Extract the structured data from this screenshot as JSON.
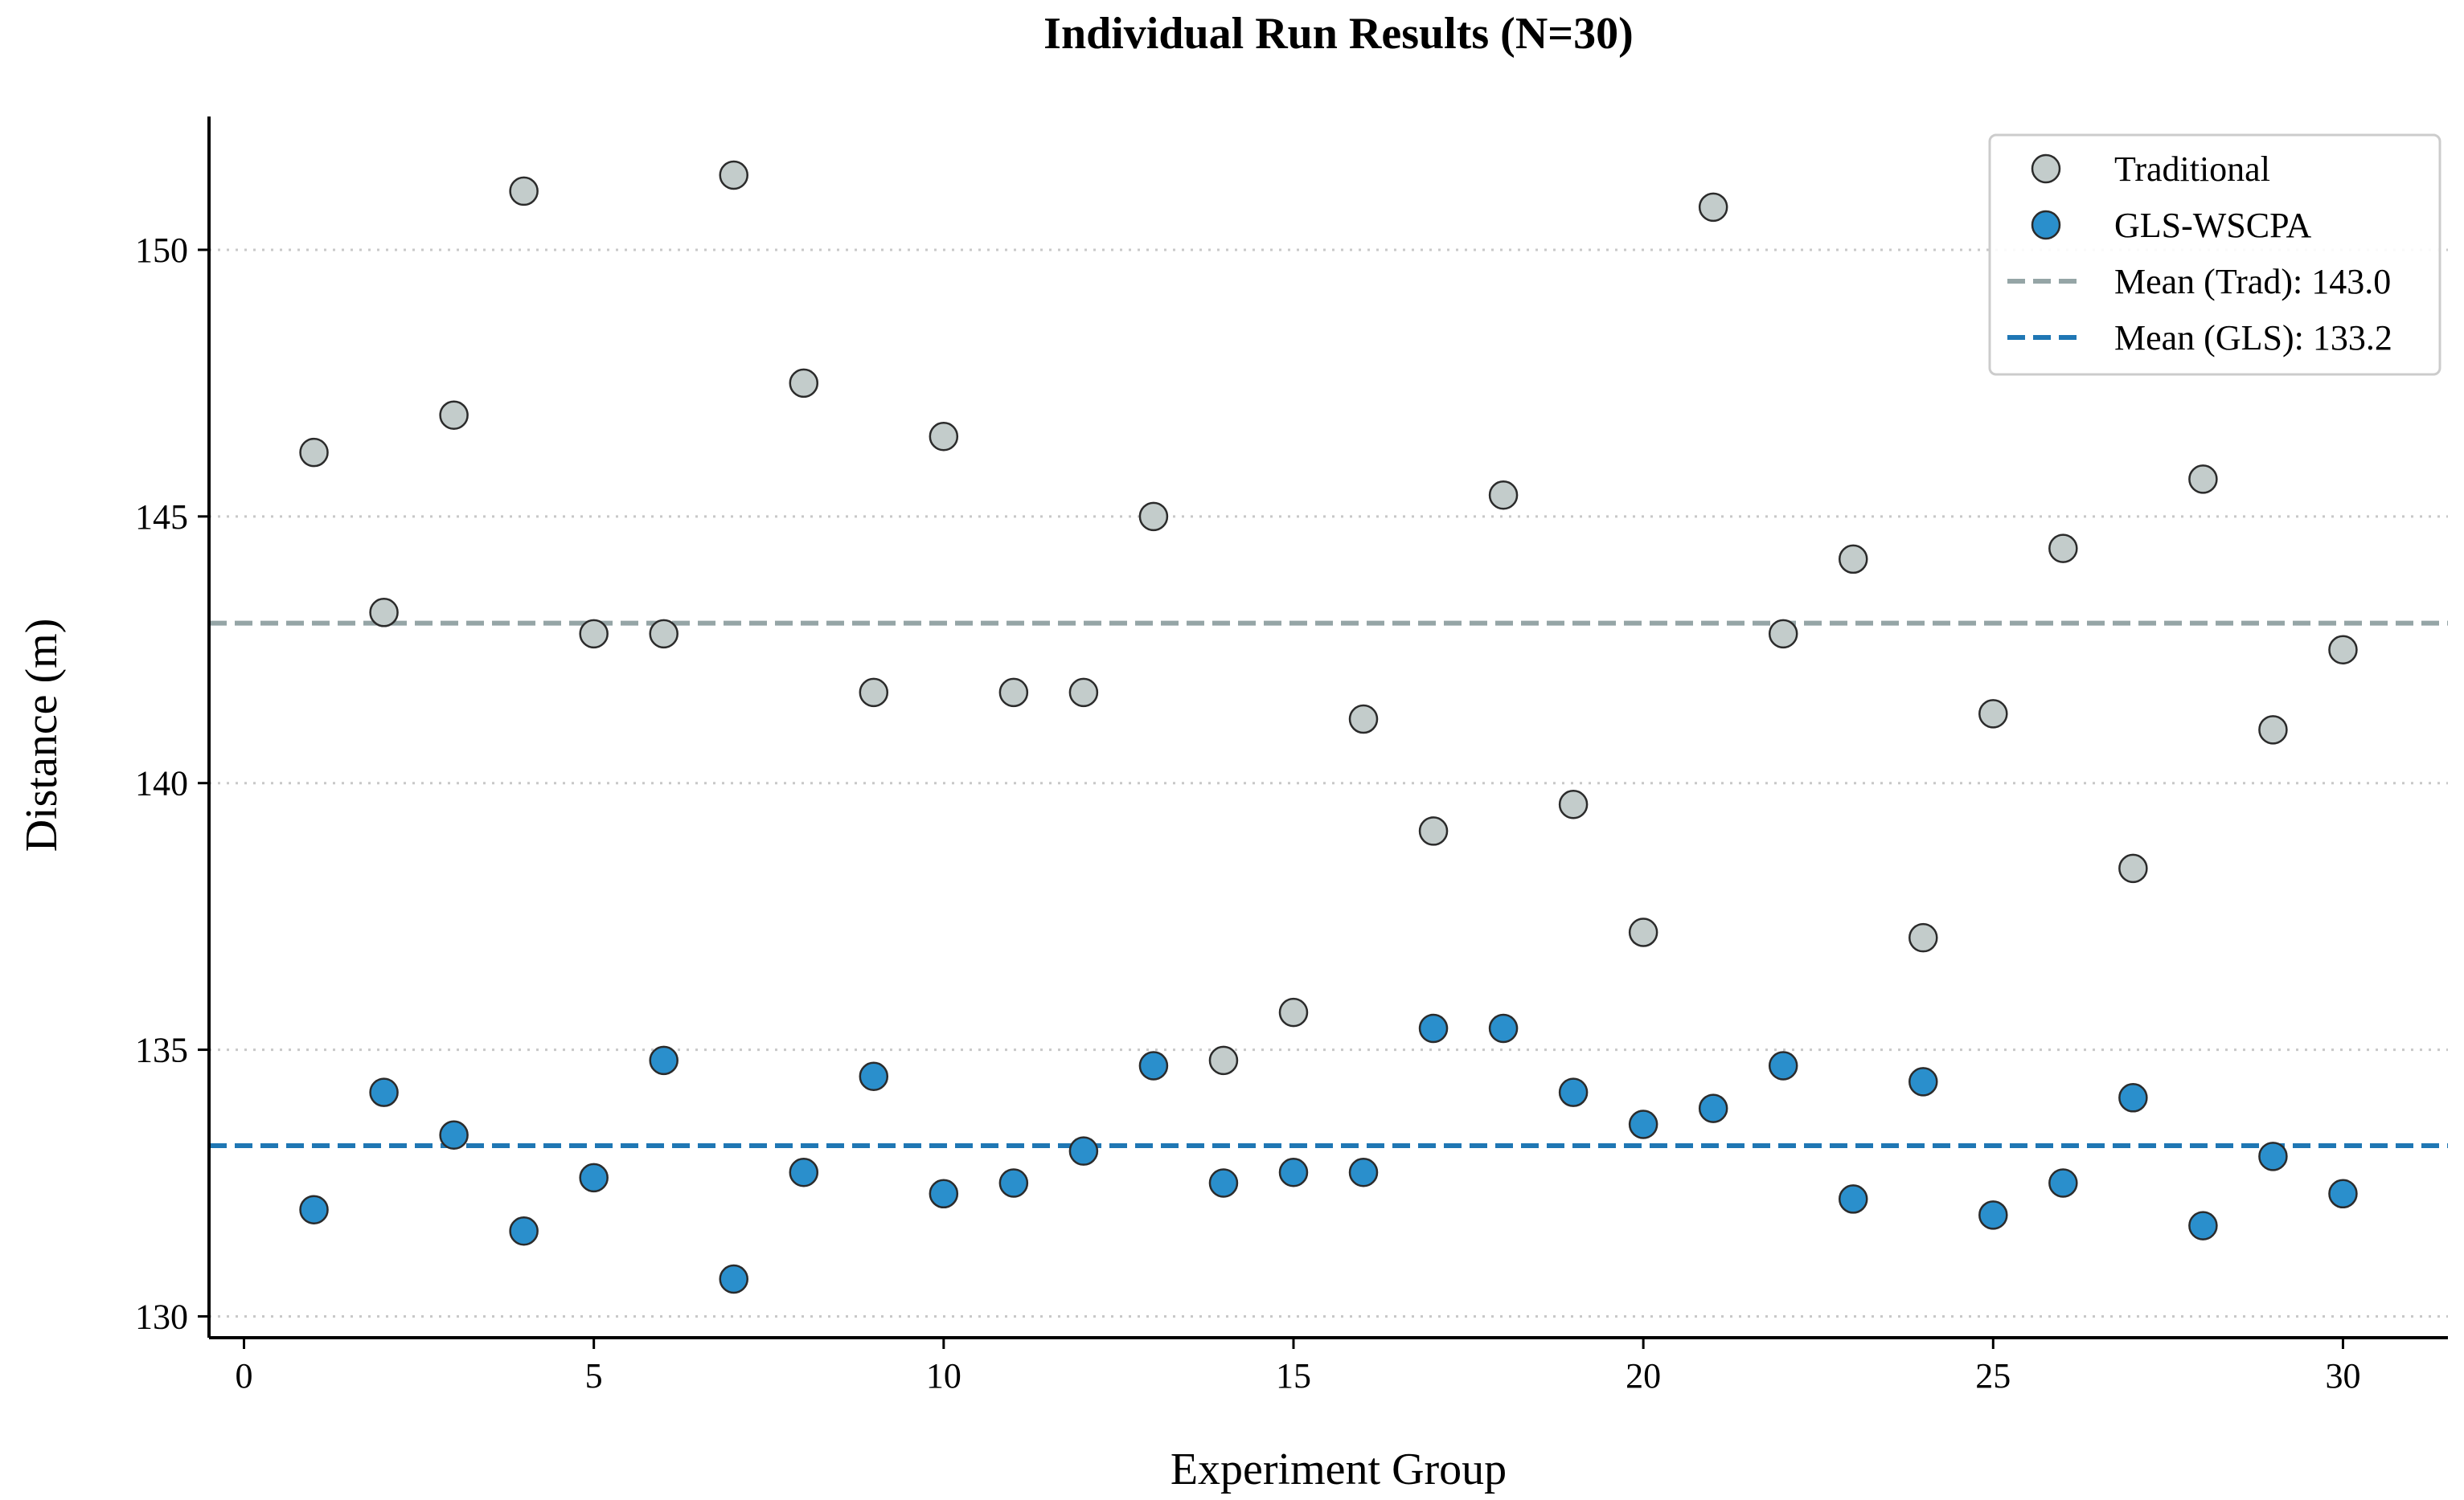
{
  "chart_data": {
    "type": "scatter",
    "title": "Individual Run Results (N=30)",
    "xlabel": "Experiment Group",
    "ylabel": "Distance (m)",
    "xlim": [
      -0.5,
      31.5
    ],
    "ylim": [
      129.6,
      152.5
    ],
    "xticks": [
      0,
      5,
      10,
      15,
      20,
      25,
      30
    ],
    "yticks": [
      130,
      135,
      140,
      145,
      150
    ],
    "grid": "horizontal dotted",
    "legend_position": "top-right",
    "colors": {
      "traditional_fill": "#c3cccb",
      "gls_fill": "#2a8fcc",
      "marker_edge": "#2b2b2b",
      "mean_trad": "#95a5a6",
      "mean_gls": "#1f77b4",
      "grid": "#c8c8c8"
    },
    "series": [
      {
        "name": "Traditional",
        "x": [
          1,
          2,
          3,
          4,
          5,
          6,
          7,
          8,
          9,
          10,
          11,
          12,
          13,
          14,
          15,
          16,
          17,
          18,
          19,
          20,
          21,
          22,
          23,
          24,
          25,
          26,
          27,
          28,
          29,
          30
        ],
        "y": [
          146.2,
          143.2,
          146.9,
          151.1,
          142.8,
          142.8,
          151.4,
          147.5,
          141.7,
          146.5,
          141.7,
          141.7,
          145.0,
          134.8,
          135.7,
          141.2,
          139.1,
          145.4,
          139.6,
          137.2,
          150.8,
          142.8,
          144.2,
          137.1,
          141.3,
          144.4,
          138.4,
          145.7,
          141.0,
          142.5
        ]
      },
      {
        "name": "GLS-WSCPA",
        "x": [
          1,
          2,
          3,
          4,
          5,
          6,
          7,
          8,
          9,
          10,
          11,
          12,
          13,
          14,
          15,
          16,
          17,
          18,
          19,
          20,
          21,
          22,
          23,
          24,
          25,
          26,
          27,
          28,
          29,
          30
        ],
        "y": [
          132.0,
          134.2,
          133.4,
          131.6,
          132.6,
          134.8,
          130.7,
          132.7,
          134.5,
          132.3,
          132.5,
          133.1,
          134.7,
          132.5,
          132.7,
          132.7,
          135.4,
          135.4,
          134.2,
          133.6,
          133.9,
          134.7,
          132.2,
          134.4,
          131.9,
          132.5,
          134.1,
          131.7,
          133.0,
          132.3
        ]
      }
    ],
    "reference_lines": [
      {
        "name": "Mean (Trad): 143.0",
        "y": 143.0
      },
      {
        "name": "Mean (GLS): 133.2",
        "y": 133.2
      }
    ]
  }
}
